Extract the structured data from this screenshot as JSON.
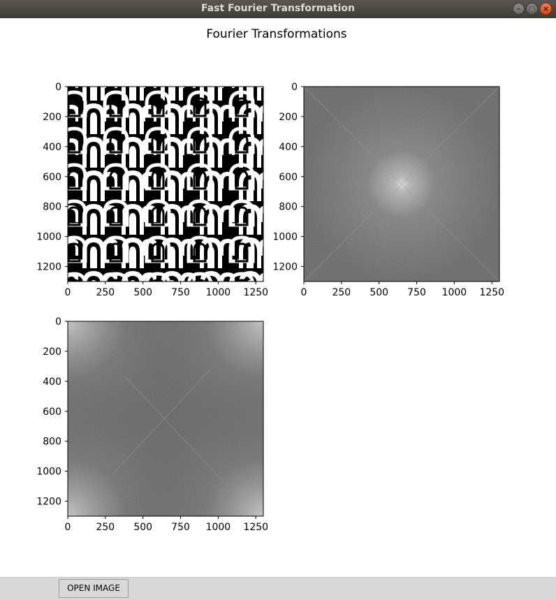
{
  "window": {
    "title": "Fast Fourier Transformation"
  },
  "figure": {
    "title": "Fourier Transformations"
  },
  "toolbar": {
    "open_button_label": "OPEN IMAGE"
  },
  "colors": {
    "titlebar": "#3c3b37",
    "close_button": "#df4a16",
    "panel": "#d9d9d9"
  },
  "chart_data": [
    {
      "type": "heatmap",
      "content": "grayscale input image (black and white arch pattern)",
      "xlim": [
        0,
        1300
      ],
      "ylim": [
        1300,
        0
      ],
      "xticks": [
        "0",
        "250",
        "500",
        "750",
        "1000",
        "1250"
      ],
      "yticks": [
        "0",
        "200",
        "400",
        "600",
        "800",
        "1000",
        "1200"
      ]
    },
    {
      "type": "heatmap",
      "content": "shifted magnitude spectrum, bright center",
      "xlim": [
        0,
        1300
      ],
      "ylim": [
        1300,
        0
      ],
      "xticks": [
        "0",
        "250",
        "500",
        "750",
        "1000",
        "1250"
      ],
      "yticks": [
        "0",
        "200",
        "400",
        "600",
        "800",
        "1000",
        "1200"
      ]
    },
    {
      "type": "heatmap",
      "content": "unshifted magnitude spectrum, bright corners",
      "xlim": [
        0,
        1300
      ],
      "ylim": [
        1300,
        0
      ],
      "xticks": [
        "0",
        "250",
        "500",
        "750",
        "1000",
        "1250"
      ],
      "yticks": [
        "0",
        "200",
        "400",
        "600",
        "800",
        "1000",
        "1200"
      ]
    }
  ]
}
